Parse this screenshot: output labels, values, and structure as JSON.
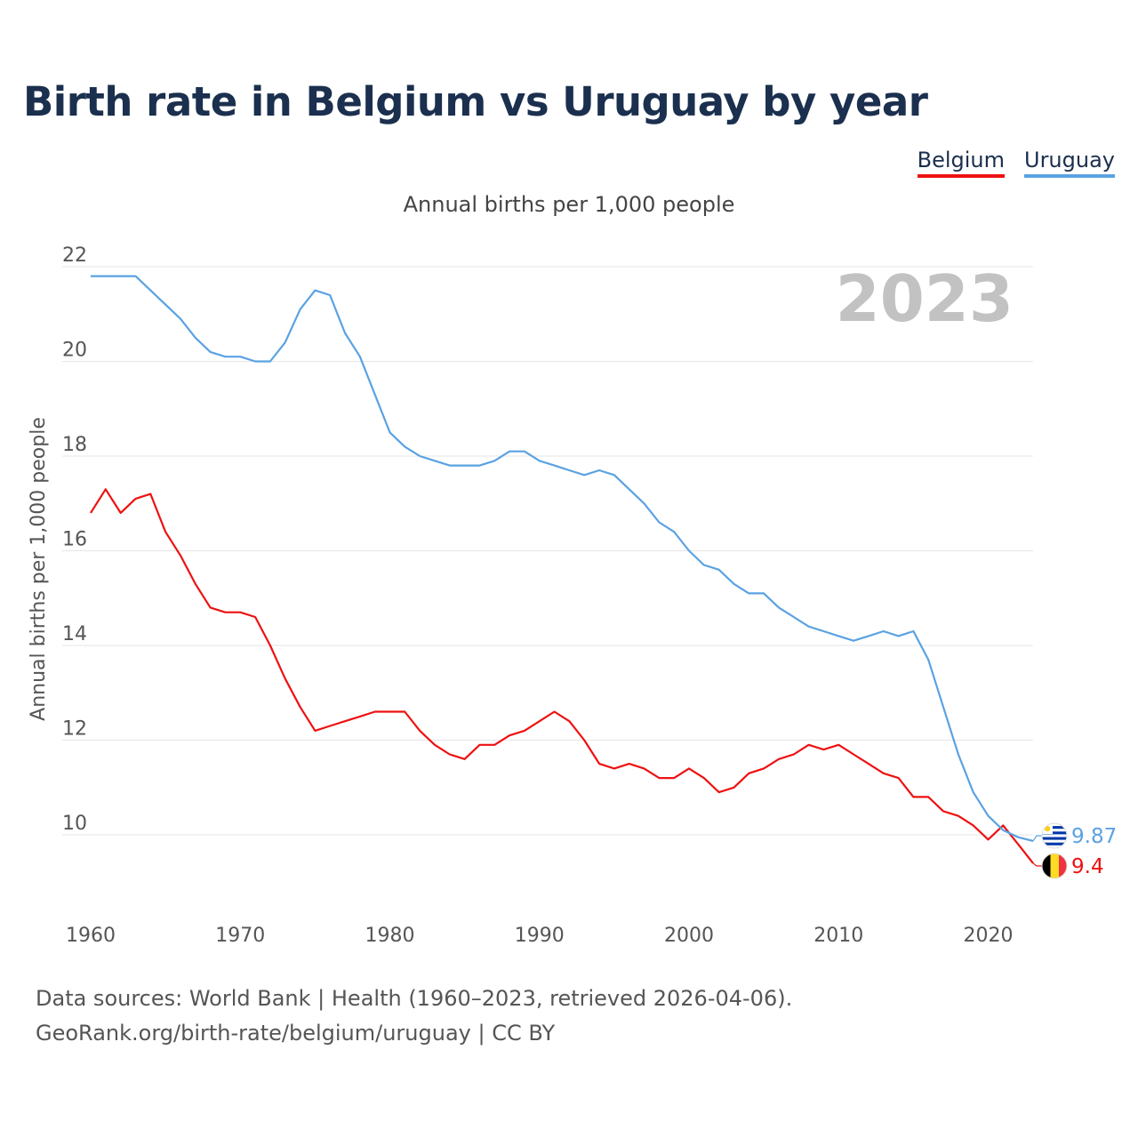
{
  "title": "Birth rate in Belgium vs Uruguay by year",
  "legend": [
    {
      "label": "Belgium",
      "color": "#ee1111"
    },
    {
      "label": "Uruguay",
      "color": "#5aa2e2"
    }
  ],
  "subtitle": "Annual births per 1,000 people",
  "year_watermark": "2023",
  "footer": {
    "line1": "Data sources: World Bank | Health (1960–2023, retrieved 2026-04-06).",
    "line2": "GeoRank.org/birth-rate/belgium/uruguay | CC BY"
  },
  "chart_data": {
    "type": "line",
    "title": "Birth rate in Belgium vs Uruguay by year",
    "ylabel": "Annual births per 1,000 people",
    "xlabel": "",
    "xlim": [
      1960,
      2023
    ],
    "ylim": [
      8.5,
      22.5
    ],
    "x_ticks": [
      1960,
      1970,
      1980,
      1990,
      2000,
      2010,
      2020
    ],
    "y_ticks": [
      10,
      12,
      14,
      16,
      18,
      20,
      22
    ],
    "grid": true,
    "x": [
      1960,
      1961,
      1962,
      1963,
      1964,
      1965,
      1966,
      1967,
      1968,
      1969,
      1970,
      1971,
      1972,
      1973,
      1974,
      1975,
      1976,
      1977,
      1978,
      1979,
      1980,
      1981,
      1982,
      1983,
      1984,
      1985,
      1986,
      1987,
      1988,
      1989,
      1990,
      1991,
      1992,
      1993,
      1994,
      1995,
      1996,
      1997,
      1998,
      1999,
      2000,
      2001,
      2002,
      2003,
      2004,
      2005,
      2006,
      2007,
      2008,
      2009,
      2010,
      2011,
      2012,
      2013,
      2014,
      2015,
      2016,
      2017,
      2018,
      2019,
      2020,
      2021,
      2022,
      2023
    ],
    "series": [
      {
        "name": "Belgium",
        "color": "#ee1111",
        "end_label": "9.4",
        "values": [
          16.8,
          17.3,
          16.8,
          17.1,
          17.2,
          16.4,
          15.9,
          15.3,
          14.8,
          14.7,
          14.7,
          14.6,
          14.0,
          13.3,
          12.7,
          12.2,
          12.3,
          12.4,
          12.5,
          12.6,
          12.6,
          12.6,
          12.2,
          11.9,
          11.7,
          11.6,
          11.9,
          11.9,
          12.1,
          12.2,
          12.4,
          12.6,
          12.4,
          12.0,
          11.5,
          11.4,
          11.5,
          11.4,
          11.2,
          11.2,
          11.4,
          11.2,
          10.9,
          11.0,
          11.3,
          11.4,
          11.6,
          11.7,
          11.9,
          11.8,
          11.9,
          11.7,
          11.5,
          11.3,
          11.2,
          10.8,
          10.8,
          10.5,
          10.4,
          10.2,
          9.9,
          10.2,
          9.8,
          9.4
        ]
      },
      {
        "name": "Uruguay",
        "color": "#5aa2e2",
        "end_label": "9.87",
        "values": [
          21.8,
          21.8,
          21.8,
          21.8,
          21.5,
          21.2,
          20.9,
          20.5,
          20.2,
          20.1,
          20.1,
          20.0,
          20.0,
          20.4,
          21.1,
          21.5,
          21.4,
          20.6,
          20.1,
          19.3,
          18.5,
          18.2,
          18.0,
          17.9,
          17.8,
          17.8,
          17.8,
          17.9,
          18.1,
          18.1,
          17.9,
          17.8,
          17.7,
          17.6,
          17.7,
          17.6,
          17.3,
          17.0,
          16.6,
          16.4,
          16.0,
          15.7,
          15.6,
          15.3,
          15.1,
          15.1,
          14.8,
          14.6,
          14.4,
          14.3,
          14.2,
          14.1,
          14.2,
          14.3,
          14.2,
          14.3,
          13.7,
          12.7,
          11.7,
          10.9,
          10.4,
          10.1,
          9.95,
          9.87
        ]
      }
    ]
  }
}
